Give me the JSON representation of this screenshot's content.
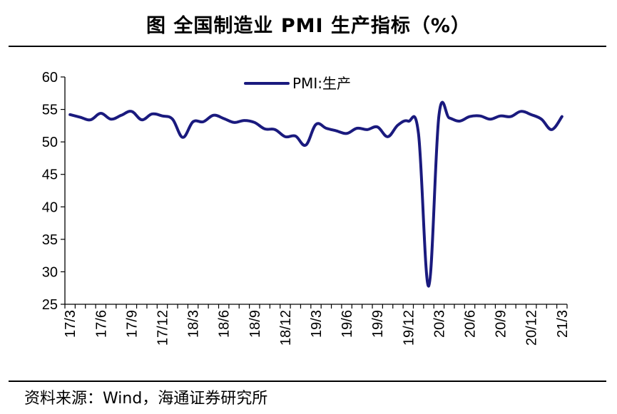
{
  "title": "图  全国制造业 PMI 生产指标（%）",
  "source": "资料来源：Wind，海通证券研究所",
  "chart_data": {
    "type": "line",
    "title": "图  全国制造业 PMI 生产指标（%）",
    "xlabel": "",
    "ylabel": "",
    "ylim": [
      25,
      60
    ],
    "yticks": [
      25,
      30,
      35,
      40,
      45,
      50,
      55,
      60
    ],
    "grid": false,
    "legend_position": "top-center",
    "line_color": "#1a1a7e",
    "x": [
      "17/3",
      "17/4",
      "17/5",
      "17/6",
      "17/7",
      "17/8",
      "17/9",
      "17/10",
      "17/11",
      "17/12",
      "18/1",
      "18/2",
      "18/3",
      "18/4",
      "18/5",
      "18/6",
      "18/7",
      "18/8",
      "18/9",
      "18/10",
      "18/11",
      "18/12",
      "19/1",
      "19/2",
      "19/3",
      "19/4",
      "19/5",
      "19/6",
      "19/7",
      "19/8",
      "19/9",
      "19/10",
      "19/11",
      "19/12",
      "20/1",
      "20/2",
      "20/3",
      "20/4",
      "20/5",
      "20/6",
      "20/7",
      "20/8",
      "20/9",
      "20/10",
      "20/11",
      "20/12",
      "21/1",
      "21/2",
      "21/3"
    ],
    "xtick_labels": [
      "17/3",
      "17/6",
      "17/9",
      "17/12",
      "18/3",
      "18/6",
      "18/9",
      "18/12",
      "19/3",
      "19/6",
      "19/9",
      "19/12",
      "20/3",
      "20/6",
      "20/9",
      "20/12",
      "21/3"
    ],
    "series": [
      {
        "name": "PMI:生产",
        "values": [
          54.2,
          53.8,
          53.4,
          54.4,
          53.5,
          54.1,
          54.7,
          53.4,
          54.3,
          54.0,
          53.5,
          50.7,
          53.1,
          53.1,
          54.1,
          53.6,
          53.0,
          53.3,
          53.0,
          52.0,
          51.9,
          50.8,
          50.9,
          49.5,
          52.7,
          52.1,
          51.7,
          51.3,
          52.1,
          51.9,
          52.3,
          50.8,
          52.6,
          53.2,
          51.3,
          27.8,
          54.1,
          53.7,
          53.2,
          53.9,
          54.0,
          53.5,
          54.0,
          53.9,
          54.7,
          54.2,
          53.5,
          51.9,
          53.9
        ]
      }
    ]
  }
}
